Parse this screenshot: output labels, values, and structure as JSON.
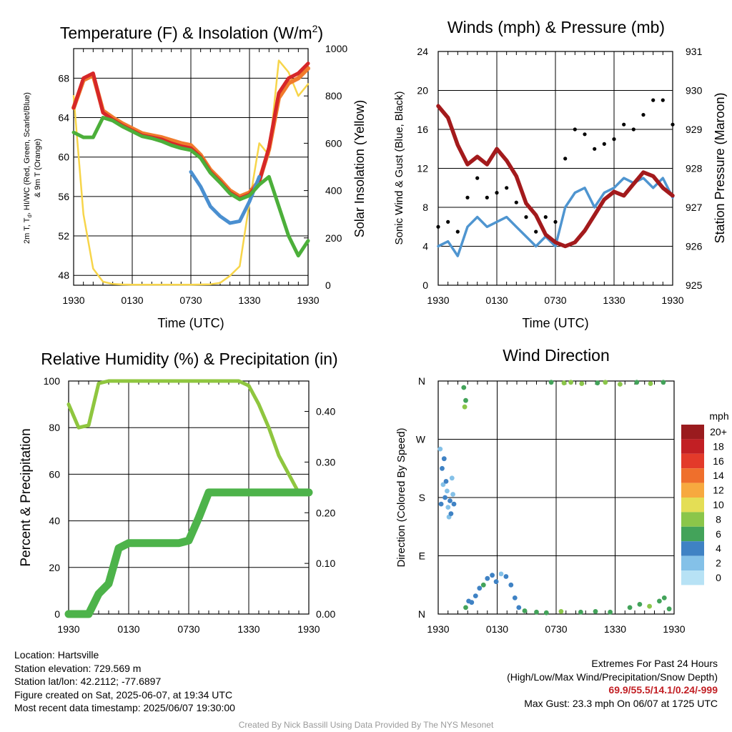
{
  "panels": {
    "temp": {
      "title": "Temperature (F) & Insolation (W/m",
      "title_sup": "2",
      "title_close": ")",
      "y_left_label_line1": "2m T, T",
      "y_left_label_sub": "d",
      "y_left_label_rest": ", HI/WC (Red, Green, Scarlet/Blue)",
      "y_left_label_line2": "& 9m T (Orange)",
      "y_right_label": "Solar Insolation (Yellow)",
      "x_label": "Time (UTC)",
      "x_ticks": [
        "1930",
        "0130",
        "0730",
        "1330",
        "1930"
      ],
      "y_left_ticks": [
        "48",
        "52",
        "56",
        "60",
        "64",
        "68"
      ],
      "y_right_ticks": [
        "0",
        "200",
        "400",
        "600",
        "800",
        "1000"
      ]
    },
    "wind": {
      "title": "Winds (mph) & Pressure (mb)",
      "y_left_label": "Sonic Wind & Gust (Blue, Black)",
      "y_right_label": "Station Pressure (Maroon)",
      "x_label": "Time (UTC)",
      "x_ticks": [
        "1930",
        "0130",
        "0730",
        "1330",
        "1930"
      ],
      "y_left_ticks": [
        "0",
        "4",
        "8",
        "12",
        "16",
        "20",
        "24"
      ],
      "y_right_ticks": [
        "925",
        "926",
        "927",
        "928",
        "929",
        "930",
        "931"
      ]
    },
    "rh": {
      "title": "Relative Humidity (%) & Precipitation (in)",
      "y_left_label": "Percent & Precipitation",
      "x_ticks": [
        "1930",
        "0130",
        "0730",
        "1330",
        "1930"
      ],
      "y_left_ticks": [
        "0",
        "20",
        "40",
        "60",
        "80",
        "100"
      ],
      "y_right_ticks": [
        "0.00",
        "0.10",
        "0.20",
        "0.30",
        "0.40"
      ]
    },
    "dir": {
      "title": "Wind Direction",
      "y_left_label": "Direction (Colored By Speed)",
      "x_ticks": [
        "1930",
        "0130",
        "0730",
        "1330",
        "1930"
      ],
      "y_ticks": [
        "N",
        "E",
        "S",
        "W",
        "N"
      ],
      "legend_title": "mph",
      "legend_labels": [
        "20+",
        "18",
        "16",
        "14",
        "12",
        "10",
        "8",
        "6",
        "4",
        "2",
        "0"
      ]
    }
  },
  "colors": {
    "temp_2m": "#d62728",
    "dewpoint": "#4caf3a",
    "heat_index_wc": "#4a8fd0",
    "temp_9m": "#f07b2c",
    "insolation": "#f7d54a",
    "wind": "#4f95d0",
    "gust": "#000000",
    "pressure": "#a31a1c",
    "rh": "#8fc63f",
    "precip": "#4db34a",
    "speed_scale": [
      "#b7e2f5",
      "#84c1e8",
      "#3f82c4",
      "#43a35a",
      "#8bc64a",
      "#e4de55",
      "#f7a93f",
      "#ef6f2c",
      "#e33a2a",
      "#c21f24",
      "#9a1b1e"
    ]
  },
  "chart_data": [
    {
      "type": "line",
      "title": "Temperature (F) & Insolation (W/m2)",
      "xlabel": "Time (UTC)",
      "ylabel": "2m T, Td, HI/WC (Red, Green, Scarlet/Blue) & 9m T (Orange)",
      "ylabel_right": "Solar Insolation (Yellow)",
      "x_hours": [
        0,
        1,
        2,
        3,
        4,
        5,
        6,
        7,
        8,
        9,
        10,
        11,
        12,
        13,
        14,
        15,
        16,
        17,
        18,
        19,
        20,
        21,
        22,
        23,
        24
      ],
      "xlim": [
        0,
        24
      ],
      "ylim": [
        47,
        71
      ],
      "ylim_right": [
        0,
        1000
      ],
      "series": [
        {
          "name": "2m T",
          "axis": "left",
          "values": [
            65,
            68,
            68.5,
            64.5,
            63.8,
            63.2,
            62.7,
            62.2,
            62,
            61.8,
            61.4,
            61.1,
            60.9,
            60,
            58.5,
            57.5,
            56.4,
            55.8,
            56.2,
            57.5,
            61,
            66.5,
            68,
            68.5,
            69.5
          ]
        },
        {
          "name": "9m T",
          "axis": "left",
          "values": [
            65,
            67.8,
            68.3,
            64.7,
            64,
            63.4,
            62.9,
            62.4,
            62.2,
            62,
            61.7,
            61.4,
            61.2,
            60.2,
            58.7,
            57.7,
            56.6,
            56,
            56.4,
            57.6,
            60.8,
            66,
            67.5,
            68,
            69
          ]
        },
        {
          "name": "Td",
          "axis": "left",
          "values": [
            62.5,
            62,
            62,
            64,
            63.7,
            63.1,
            62.6,
            62.1,
            61.9,
            61.6,
            61.2,
            60.9,
            60.7,
            59.9,
            58.4,
            57.4,
            56.3,
            55.7,
            56.1,
            57.2,
            58,
            55,
            52,
            50,
            51.5
          ]
        },
        {
          "name": "HI/WC",
          "axis": "left",
          "values": [
            null,
            null,
            null,
            null,
            null,
            null,
            null,
            null,
            null,
            null,
            null,
            null,
            58.5,
            57,
            55,
            54,
            53.3,
            53.5,
            55.5,
            58,
            null,
            null,
            null,
            null,
            null
          ]
        },
        {
          "name": "Insolation",
          "axis": "right",
          "values": [
            800,
            300,
            70,
            15,
            5,
            3,
            2,
            2,
            2,
            2,
            2,
            2,
            2,
            3,
            4,
            10,
            40,
            80,
            350,
            600,
            550,
            950,
            900,
            800,
            850
          ]
        }
      ]
    },
    {
      "type": "line",
      "title": "Winds (mph) & Pressure (mb)",
      "xlabel": "Time (UTC)",
      "ylabel": "Sonic Wind & Gust (Blue, Black)",
      "ylabel_right": "Station Pressure (Maroon)",
      "x_hours": [
        0,
        1,
        2,
        3,
        4,
        5,
        6,
        7,
        8,
        9,
        10,
        11,
        12,
        13,
        14,
        15,
        16,
        17,
        18,
        19,
        20,
        21,
        22,
        23,
        24
      ],
      "xlim": [
        0,
        24
      ],
      "ylim": [
        0,
        24
      ],
      "ylim_right": [
        925,
        931
      ],
      "series": [
        {
          "name": "Sonic Wind",
          "axis": "left",
          "values": [
            4,
            4.5,
            3,
            6,
            7,
            6,
            6.5,
            7,
            6,
            5,
            4,
            5,
            4,
            8,
            9.5,
            10,
            8,
            9.5,
            10,
            11,
            10.5,
            11,
            10,
            11,
            9
          ]
        },
        {
          "name": "Gust",
          "axis": "left",
          "values": [
            6,
            6.5,
            5.5,
            9,
            11,
            9,
            9.5,
            10,
            8.5,
            7,
            5.5,
            7,
            6.5,
            13,
            16,
            15.5,
            14,
            14.5,
            15,
            16.5,
            16,
            17.5,
            19,
            19,
            16.5
          ]
        },
        {
          "name": "Station Pressure",
          "axis": "right",
          "values": [
            929.6,
            929.3,
            928.6,
            928.1,
            928.3,
            928.1,
            928.5,
            928.2,
            927.8,
            927.1,
            926.8,
            926.3,
            926.1,
            926,
            926.1,
            926.4,
            926.8,
            927.2,
            927.4,
            927.3,
            927.6,
            927.9,
            927.8,
            927.5,
            927.3
          ]
        }
      ]
    },
    {
      "type": "line",
      "title": "Relative Humidity (%) & Precipitation (in)",
      "ylabel": "Percent & Precipitation",
      "x_hours": [
        0,
        1,
        2,
        3,
        4,
        5,
        6,
        7,
        8,
        9,
        10,
        11,
        12,
        13,
        14,
        15,
        16,
        17,
        18,
        19,
        20,
        21,
        22,
        23,
        24
      ],
      "xlim": [
        0,
        24
      ],
      "ylim": [
        0,
        100
      ],
      "ylim_right": [
        0,
        0.46
      ],
      "series": [
        {
          "name": "RH",
          "axis": "left",
          "values": [
            90,
            80,
            81,
            99,
            100,
            100,
            100,
            100,
            100,
            100,
            100,
            100,
            100,
            100,
            100,
            100,
            100,
            100,
            98,
            90,
            80,
            68,
            60,
            52,
            52
          ]
        },
        {
          "name": "Precipitation",
          "axis": "right",
          "values": [
            0,
            0,
            0,
            0.04,
            0.06,
            0.13,
            0.14,
            0.14,
            0.14,
            0.14,
            0.14,
            0.14,
            0.145,
            0.19,
            0.24,
            0.24,
            0.24,
            0.24,
            0.24,
            0.24,
            0.24,
            0.24,
            0.24,
            0.24,
            0.24
          ]
        }
      ]
    },
    {
      "type": "scatter",
      "title": "Wind Direction",
      "ylabel": "Direction (Colored By Speed)",
      "xlim": [
        0,
        24
      ],
      "ylim": [
        0,
        360
      ],
      "colorbar": {
        "label": "mph",
        "levels": [
          "0",
          "2",
          "4",
          "6",
          "8",
          "10",
          "12",
          "14",
          "16",
          "18",
          "20+"
        ]
      },
      "points": [
        {
          "x": 0.2,
          "y": 255,
          "s": 1
        },
        {
          "x": 0.3,
          "y": 170,
          "s": 3
        },
        {
          "x": 0.4,
          "y": 225,
          "s": 4
        },
        {
          "x": 0.5,
          "y": 200,
          "s": 2
        },
        {
          "x": 0.7,
          "y": 180,
          "s": 4
        },
        {
          "x": 0.9,
          "y": 190,
          "s": 2
        },
        {
          "x": 1.0,
          "y": 165,
          "s": 2
        },
        {
          "x": 1.1,
          "y": 150,
          "s": 1
        },
        {
          "x": 1.2,
          "y": 175,
          "s": 3
        },
        {
          "x": 1.4,
          "y": 210,
          "s": 1
        },
        {
          "x": 1.5,
          "y": 185,
          "s": 2
        },
        {
          "x": 1.3,
          "y": 155,
          "s": 4
        },
        {
          "x": 0.6,
          "y": 240,
          "s": 3
        },
        {
          "x": 0.8,
          "y": 205,
          "s": 4
        },
        {
          "x": 1.6,
          "y": 170,
          "s": 3
        },
        {
          "x": 2.6,
          "y": 350,
          "s": 5
        },
        {
          "x": 2.8,
          "y": 330,
          "s": 6
        },
        {
          "x": 2.7,
          "y": 320,
          "s": 7
        },
        {
          "x": 2.8,
          "y": 10,
          "s": 5
        },
        {
          "x": 3.1,
          "y": 20,
          "s": 3
        },
        {
          "x": 3.4,
          "y": 18,
          "s": 4
        },
        {
          "x": 3.8,
          "y": 28,
          "s": 3
        },
        {
          "x": 4.2,
          "y": 40,
          "s": 4
        },
        {
          "x": 4.6,
          "y": 45,
          "s": 5
        },
        {
          "x": 5.0,
          "y": 55,
          "s": 3
        },
        {
          "x": 5.5,
          "y": 60,
          "s": 3
        },
        {
          "x": 5.9,
          "y": 50,
          "s": 4
        },
        {
          "x": 6.4,
          "y": 62,
          "s": 2
        },
        {
          "x": 6.9,
          "y": 58,
          "s": 3
        },
        {
          "x": 7.4,
          "y": 45,
          "s": 3
        },
        {
          "x": 7.8,
          "y": 25,
          "s": 4
        },
        {
          "x": 8.2,
          "y": 10,
          "s": 4
        },
        {
          "x": 8.8,
          "y": 5,
          "s": 5
        },
        {
          "x": 11.5,
          "y": 358,
          "s": 5
        },
        {
          "x": 12.8,
          "y": 357,
          "s": 7
        },
        {
          "x": 13.5,
          "y": 358,
          "s": 8
        },
        {
          "x": 14.6,
          "y": 356,
          "s": 8
        },
        {
          "x": 16.2,
          "y": 357,
          "s": 6
        },
        {
          "x": 17.0,
          "y": 358,
          "s": 7
        },
        {
          "x": 18.5,
          "y": 355,
          "s": 8
        },
        {
          "x": 20.2,
          "y": 358,
          "s": 6
        },
        {
          "x": 21.6,
          "y": 356,
          "s": 7
        },
        {
          "x": 22.9,
          "y": 358,
          "s": 6
        },
        {
          "x": 10.0,
          "y": 3,
          "s": 5
        },
        {
          "x": 11.0,
          "y": 2,
          "s": 6
        },
        {
          "x": 12.5,
          "y": 4,
          "s": 7
        },
        {
          "x": 14.5,
          "y": 3,
          "s": 6
        },
        {
          "x": 16.0,
          "y": 4,
          "s": 5
        },
        {
          "x": 17.5,
          "y": 3,
          "s": 6
        },
        {
          "x": 19.5,
          "y": 10,
          "s": 5
        },
        {
          "x": 20.5,
          "y": 15,
          "s": 6
        },
        {
          "x": 21.5,
          "y": 12,
          "s": 7
        },
        {
          "x": 22.5,
          "y": 20,
          "s": 5
        },
        {
          "x": 23.5,
          "y": 8,
          "s": 6
        },
        {
          "x": 23.0,
          "y": 25,
          "s": 5
        }
      ]
    }
  ],
  "info": {
    "location": "Location: Hartsville",
    "elevation": "Station elevation: 729.569 m",
    "latlon": "Station lat/lon: 42.2112; -77.6897",
    "created": "Figure created on Sat, 2025-06-07, at 19:34 UTC",
    "recent": "Most recent data timestamp: 2025/06/07 19:30:00"
  },
  "extremes": {
    "title": "Extremes For Past 24 Hours",
    "subtitle": "(High/Low/Max Wind/Precipitation/Snow Depth)",
    "values": "69.9/55.5/14.1/0.24/-999",
    "max_gust": "Max Gust: 23.3 mph On 06/07 at 1725 UTC"
  },
  "credit": "Created By Nick Bassill Using Data Provided By The NYS Mesonet"
}
